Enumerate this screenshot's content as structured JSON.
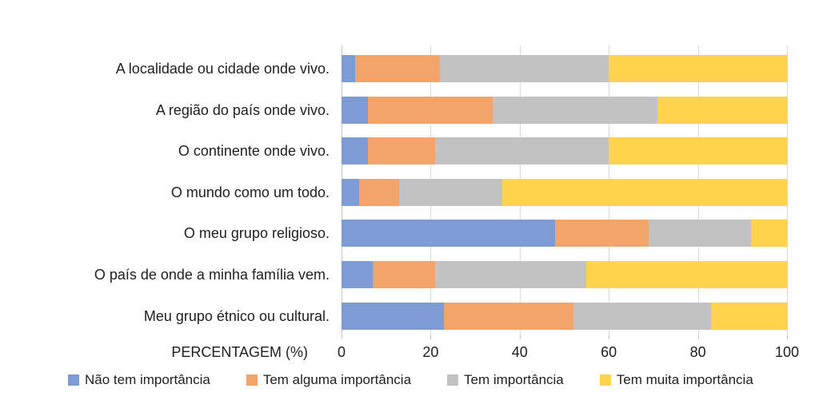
{
  "chart_data": {
    "type": "bar",
    "variant": "horizontal-stacked",
    "title": "",
    "xlabel": "PERCENTAGEM (%)",
    "ylabel": "",
    "xlim": [
      0,
      100
    ],
    "xticks": [
      0,
      20,
      40,
      60,
      80,
      100
    ],
    "grid": true,
    "legend_position": "bottom",
    "categories": [
      "A localidade ou cidade onde vivo.",
      "A região do país onde vivo.",
      "O continente onde vivo.",
      "O mundo como um todo.",
      "O meu grupo religioso.",
      "O país de onde a minha família vem.",
      "Meu grupo étnico ou cultural."
    ],
    "series": [
      {
        "name": "Não tem importância",
        "color": "#7d9bd4",
        "values": [
          3,
          6,
          6,
          4,
          48,
          7,
          23
        ]
      },
      {
        "name": "Tem alguma importância",
        "color": "#f2a46b",
        "values": [
          19,
          28,
          15,
          9,
          21,
          14,
          29
        ]
      },
      {
        "name": "Tem importância",
        "color": "#c2c2c2",
        "values": [
          38,
          37,
          39,
          23,
          23,
          34,
          31
        ]
      },
      {
        "name": "Tem muita importância",
        "color": "#ffd34d",
        "values": [
          40,
          29,
          40,
          64,
          8,
          45,
          17
        ]
      }
    ]
  },
  "style_colors": {
    "gridline": "#d9d9d9",
    "axis_line": "#c6c6c6",
    "tick_mark": "#bfbfbf",
    "text": "#1f1f1f"
  }
}
